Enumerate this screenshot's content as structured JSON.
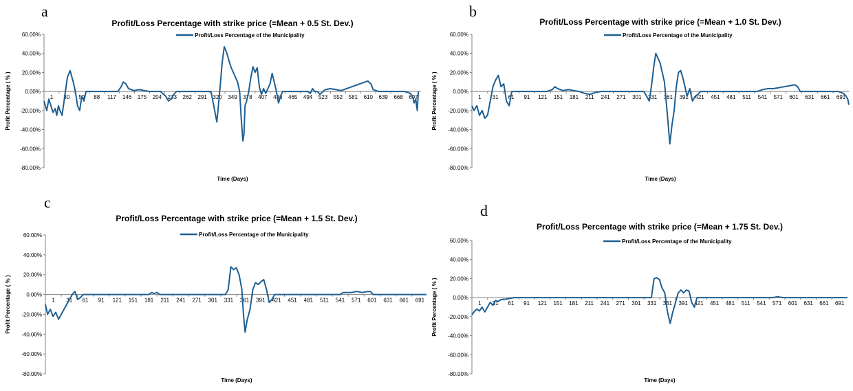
{
  "chart_data": [
    {
      "panel": "a",
      "type": "line",
      "title": "Profit/Loss Percentage with strike price (=Mean + 0.5 St. Dev.)",
      "xlabel": "Time (Days)",
      "ylabel": "Profit Percentage ( % )",
      "legend": "Profit/Loss Percentage of the Municipality",
      "legend_position": "top-center",
      "ylim": [
        -80,
        60
      ],
      "yticks": [
        "60.00%",
        "40.00%",
        "20.00%",
        "0.00%",
        "-20.00%",
        "-40.00%",
        "-60.00%",
        "-80.00%"
      ],
      "xlim": [
        1,
        710
      ],
      "xtick_labels": [
        "1",
        "30",
        "59",
        "88",
        "117",
        "146",
        "175",
        "204",
        "233",
        "262",
        "291",
        "320",
        "349",
        "378",
        "407",
        "436",
        "465",
        "494",
        "523",
        "552",
        "581",
        "610",
        "639",
        "668",
        "697"
      ],
      "series_color": "#1F5F91",
      "series": [
        {
          "name": "Profit/Loss Percentage of the Municipality",
          "x": [
            1,
            6,
            10,
            14,
            18,
            22,
            25,
            28,
            31,
            35,
            40,
            45,
            50,
            56,
            60,
            64,
            68,
            72,
            76,
            80,
            85,
            90,
            95,
            100,
            110,
            120,
            130,
            140,
            146,
            150,
            155,
            160,
            165,
            170,
            180,
            190,
            200,
            210,
            220,
            230,
            235,
            240,
            245,
            250,
            255,
            260,
            270,
            280,
            300,
            315,
            322,
            326,
            329,
            333,
            336,
            340,
            345,
            349,
            353,
            357,
            361,
            365,
            369,
            372,
            375,
            377,
            379,
            382,
            386,
            390,
            394,
            398,
            402,
            406,
            410,
            414,
            418,
            422,
            426,
            430,
            434,
            438,
            442,
            446,
            450,
            460,
            480,
            490,
            497,
            502,
            506,
            510,
            515,
            520,
            530,
            540,
            550,
            560,
            570,
            580,
            590,
            600,
            605,
            610,
            616,
            620,
            630,
            640,
            650,
            660,
            670,
            680,
            690,
            694,
            697,
            700,
            703,
            705
          ],
          "y": [
            -10,
            -20,
            -8,
            -15,
            -22,
            -18,
            -25,
            -15,
            -20,
            -25,
            -5,
            15,
            22,
            10,
            0,
            -15,
            -20,
            -5,
            -10,
            0,
            0,
            0,
            0,
            0,
            0,
            0,
            0,
            0,
            5,
            10,
            8,
            3,
            2,
            1,
            2,
            1,
            0,
            0,
            0,
            -5,
            -10,
            -8,
            -3,
            0,
            0,
            0,
            0,
            0,
            0,
            0,
            -20,
            -32,
            -15,
            10,
            30,
            47,
            40,
            32,
            25,
            20,
            15,
            10,
            0,
            -30,
            -52,
            -45,
            -15,
            -10,
            0,
            15,
            26,
            20,
            25,
            5,
            -3,
            3,
            -2,
            3,
            8,
            19,
            10,
            0,
            -12,
            -5,
            0,
            0,
            0,
            0,
            0,
            -2,
            3,
            0,
            0,
            -3,
            2,
            3,
            2,
            1,
            3,
            5,
            7,
            9,
            10,
            11,
            8,
            2,
            0,
            0,
            0,
            0,
            0,
            0,
            -2,
            -5,
            -12,
            -8,
            -20,
            0
          ]
        }
      ]
    },
    {
      "panel": "b",
      "type": "line",
      "title": "Profit/Loss Percentage with strike price (=Mean + 1.0 St. Dev.)",
      "xlabel": "Time (Days)",
      "ylabel": "Profit Percentage ( % )",
      "legend": "Profit/Loss Percentage of the Municipality",
      "legend_position": "top-center",
      "ylim": [
        -80,
        60
      ],
      "yticks": [
        "60.00%",
        "40.00%",
        "20.00%",
        "0.00%",
        "-20.00%",
        "-40.00%",
        "-60.00%",
        "-80.00%"
      ],
      "xlim": [
        1,
        700
      ],
      "xtick_labels": [
        "1",
        "31",
        "61",
        "91",
        "121",
        "151",
        "181",
        "211",
        "241",
        "271",
        "301",
        "331",
        "361",
        "391",
        "421",
        "451",
        "481",
        "511",
        "541",
        "571",
        "601",
        "631",
        "661",
        "691"
      ],
      "series_color": "#1F5F91",
      "series": [
        {
          "name": "Profit/Loss Percentage of the Municipality",
          "x": [
            1,
            5,
            10,
            15,
            20,
            25,
            30,
            35,
            40,
            45,
            50,
            55,
            60,
            65,
            70,
            75,
            80,
            90,
            100,
            120,
            140,
            150,
            155,
            160,
            165,
            170,
            180,
            190,
            200,
            210,
            220,
            230,
            240,
            250,
            270,
            290,
            310,
            320,
            325,
            330,
            335,
            338,
            342,
            346,
            350,
            354,
            358,
            362,
            365,
            368,
            372,
            376,
            380,
            384,
            388,
            392,
            396,
            400,
            405,
            410,
            415,
            420,
            425,
            430,
            440,
            460,
            480,
            500,
            520,
            530,
            540,
            550,
            560,
            570,
            580,
            590,
            600,
            605,
            610,
            620,
            640,
            660,
            680,
            690,
            695,
            698,
            700
          ],
          "y": [
            -15,
            -20,
            -15,
            -25,
            -20,
            -28,
            -25,
            -10,
            5,
            12,
            17,
            5,
            8,
            -10,
            -15,
            0,
            0,
            0,
            0,
            0,
            0,
            2,
            5,
            3,
            2,
            1,
            2,
            1,
            0,
            -2,
            -3,
            -1,
            0,
            0,
            0,
            0,
            0,
            0,
            -5,
            -10,
            10,
            25,
            40,
            35,
            30,
            20,
            10,
            -15,
            -35,
            -55,
            -35,
            -20,
            5,
            20,
            22,
            15,
            5,
            -5,
            3,
            -10,
            -5,
            -3,
            0,
            0,
            0,
            0,
            0,
            0,
            0,
            0,
            2,
            3,
            3,
            4,
            5,
            6,
            7,
            5,
            0,
            0,
            0,
            0,
            0,
            -2,
            -5,
            -8,
            -14
          ]
        }
      ]
    },
    {
      "panel": "c",
      "type": "line",
      "title": "Profit/Loss Percentage with strike price (=Mean + 1.5 St. Dev.)",
      "xlabel": "Time (Days)",
      "ylabel": "Profit Percentage ( % )",
      "legend": "Profit/Loss Percentage of the Municipality",
      "legend_position": "top-center",
      "ylim": [
        -80,
        60
      ],
      "yticks": [
        "60.00%",
        "40.00%",
        "20.00%",
        "0.00%",
        "-20.00%",
        "-40.00%",
        "-60.00%",
        "-80.00%"
      ],
      "xlim": [
        1,
        700
      ],
      "xtick_labels": [
        "1",
        "31",
        "61",
        "91",
        "121",
        "151",
        "181",
        "211",
        "241",
        "271",
        "301",
        "331",
        "361",
        "391",
        "421",
        "451",
        "481",
        "511",
        "541",
        "571",
        "601",
        "631",
        "661",
        "691"
      ],
      "series_color": "#1F5F91",
      "series": [
        {
          "name": "Profit/Loss Percentage of the Municipality",
          "x": [
            1,
            5,
            10,
            15,
            20,
            25,
            30,
            35,
            40,
            45,
            50,
            55,
            60,
            65,
            70,
            80,
            100,
            150,
            190,
            195,
            200,
            205,
            210,
            220,
            250,
            300,
            330,
            335,
            340,
            345,
            350,
            355,
            360,
            363,
            366,
            370,
            375,
            380,
            385,
            390,
            395,
            400,
            405,
            410,
            415,
            420,
            430,
            450,
            500,
            540,
            545,
            560,
            570,
            580,
            590,
            595,
            600,
            610,
            650,
            700
          ],
          "y": [
            -10,
            -20,
            -15,
            -22,
            -18,
            -25,
            -20,
            -15,
            -10,
            -5,
            0,
            3,
            -5,
            -3,
            0,
            0,
            0,
            0,
            0,
            2,
            1,
            2,
            0,
            0,
            0,
            0,
            0,
            5,
            28,
            25,
            27,
            20,
            5,
            -20,
            -38,
            -25,
            -15,
            5,
            12,
            10,
            13,
            15,
            5,
            -8,
            -5,
            0,
            0,
            0,
            0,
            0,
            2,
            2,
            3,
            2,
            3,
            3,
            0,
            0,
            0,
            0
          ]
        }
      ]
    },
    {
      "panel": "d",
      "type": "line",
      "title": "Profit/Loss Percentage with strike price (=Mean + 1.75 St. Dev.)",
      "xlabel": "Time (Days)",
      "ylabel": "Profit Percentage ( % )",
      "legend": "Profit/Loss Percentage of the Municipality",
      "legend_position": "top-center",
      "ylim": [
        -80,
        60
      ],
      "yticks": [
        "60.00%",
        "40.00%",
        "20.00%",
        "0.00%",
        "-20.00%",
        "-40.00%",
        "-60.00%",
        "-80.00%"
      ],
      "xlim": [
        1,
        700
      ],
      "xtick_labels": [
        "1",
        "31",
        "61",
        "91",
        "121",
        "151",
        "181",
        "211",
        "241",
        "271",
        "301",
        "331",
        "361",
        "391",
        "421",
        "451",
        "481",
        "511",
        "541",
        "571",
        "601",
        "631",
        "661",
        "691"
      ],
      "series_color": "#1F5F91",
      "series": [
        {
          "name": "Profit/Loss Percentage of the Municipality",
          "x": [
            1,
            5,
            10,
            15,
            20,
            25,
            30,
            35,
            40,
            45,
            50,
            55,
            60,
            70,
            80,
            100,
            150,
            200,
            250,
            300,
            335,
            340,
            345,
            350,
            355,
            360,
            365,
            370,
            375,
            380,
            385,
            390,
            395,
            400,
            405,
            410,
            415,
            420,
            430,
            450,
            500,
            550,
            560,
            570,
            580,
            600,
            650,
            700
          ],
          "y": [
            -18,
            -15,
            -12,
            -14,
            -10,
            -15,
            -10,
            -5,
            -8,
            -3,
            -4,
            -2,
            -2,
            -1,
            0,
            0,
            0,
            0,
            0,
            0,
            0,
            20,
            21,
            19,
            10,
            5,
            -15,
            -27,
            -15,
            -5,
            5,
            8,
            5,
            8,
            7,
            -5,
            -10,
            0,
            0,
            0,
            0,
            0,
            0,
            1,
            0,
            0,
            0,
            0
          ]
        }
      ]
    }
  ]
}
